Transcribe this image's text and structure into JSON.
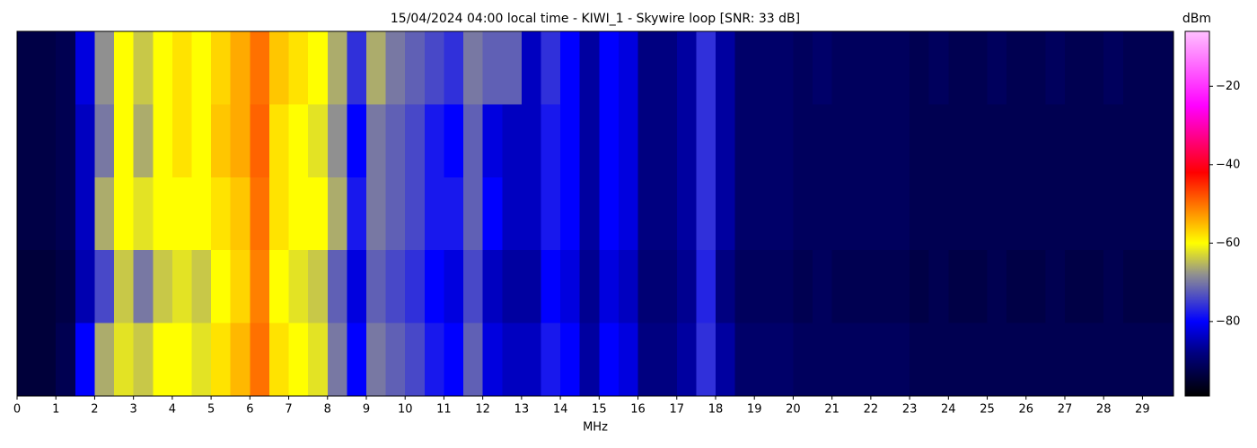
{
  "chart_data": {
    "type": "heatmap",
    "title": "15/04/2024 04:00 local time - KIWI_1 - Skywire loop [SNR: 33 dB]",
    "x_label": "MHz",
    "colorbar_label": "dBm",
    "xbins": [
      0,
      0.5,
      1,
      1.5,
      2,
      2.5,
      3,
      3.5,
      4,
      4.5,
      5,
      5.5,
      6,
      6.5,
      7,
      7.5,
      8,
      8.5,
      9,
      9.5,
      10,
      10.5,
      11,
      11.5,
      12,
      12.5,
      13,
      13.5,
      14,
      14.5,
      15,
      15.5,
      16,
      16.5,
      17,
      17.5,
      18,
      18.5,
      19,
      19.5,
      20,
      20.5,
      21,
      21.5,
      22,
      22.5,
      23,
      23.5,
      24,
      24.5,
      25,
      25.5,
      26,
      26.5,
      27,
      27.5,
      28,
      28.5,
      29,
      29.5,
      29.8
    ],
    "xlim": [
      0,
      29.8
    ],
    "xticks": [
      0,
      1,
      2,
      3,
      4,
      5,
      6,
      7,
      8,
      9,
      10,
      11,
      12,
      13,
      14,
      15,
      16,
      17,
      18,
      19,
      20,
      21,
      22,
      23,
      24,
      25,
      26,
      27,
      28,
      29
    ],
    "clim": [
      -99,
      -6
    ],
    "cticks": [
      {
        "value": -20,
        "label": "−20"
      },
      {
        "value": -40,
        "label": "−40"
      },
      {
        "value": -60,
        "label": "−60"
      },
      {
        "value": -80,
        "label": "−80"
      }
    ],
    "colorscale": [
      [
        -99,
        "#000000"
      ],
      [
        -88,
        "#000080"
      ],
      [
        -80,
        "#0000ff"
      ],
      [
        -68,
        "#909090"
      ],
      [
        -60,
        "#ffff00"
      ],
      [
        -42,
        "#ff0000"
      ],
      [
        -25,
        "#ff00ff"
      ],
      [
        -6,
        "#ffc0ff"
      ]
    ],
    "z": [
      [
        -93,
        -93,
        -92,
        -82,
        -68,
        -60,
        -64,
        -60,
        -58,
        -60,
        -57,
        -54,
        -50,
        -56,
        -58,
        -60,
        -66,
        -76,
        -66,
        -70,
        -72,
        -74,
        -76,
        -70,
        -72,
        -72,
        -84,
        -76,
        -80,
        -86,
        -80,
        -82,
        -88,
        -88,
        -86,
        -76,
        -86,
        -90,
        -90,
        -90,
        -91,
        -90,
        -91,
        -91,
        -91,
        -91,
        -92,
        -91,
        -92,
        -92,
        -91,
        -92,
        -92,
        -91,
        -92,
        -92,
        -91,
        -92,
        -92,
        -92
      ],
      [
        -93,
        -93,
        -92,
        -84,
        -70,
        -60,
        -66,
        -60,
        -58,
        -60,
        -56,
        -54,
        -49,
        -58,
        -60,
        -62,
        -68,
        -80,
        -70,
        -72,
        -74,
        -78,
        -80,
        -72,
        -82,
        -84,
        -84,
        -78,
        -80,
        -86,
        -80,
        -82,
        -88,
        -88,
        -86,
        -76,
        -86,
        -90,
        -90,
        -90,
        -91,
        -91,
        -91,
        -91,
        -91,
        -91,
        -92,
        -92,
        -92,
        -92,
        -92,
        -92,
        -92,
        -92,
        -92,
        -92,
        -92,
        -92,
        -92,
        -92
      ],
      [
        -93,
        -93,
        -92,
        -84,
        -66,
        -60,
        -62,
        -60,
        -60,
        -60,
        -58,
        -56,
        -50,
        -58,
        -60,
        -60,
        -66,
        -78,
        -70,
        -72,
        -74,
        -78,
        -78,
        -72,
        -80,
        -84,
        -84,
        -78,
        -80,
        -86,
        -80,
        -82,
        -88,
        -88,
        -86,
        -76,
        -86,
        -90,
        -90,
        -90,
        -91,
        -91,
        -91,
        -91,
        -91,
        -91,
        -92,
        -92,
        -92,
        -92,
        -92,
        -92,
        -92,
        -92,
        -92,
        -92,
        -92,
        -92,
        -92,
        -92
      ],
      [
        -94,
        -94,
        -93,
        -85,
        -74,
        -64,
        -70,
        -64,
        -62,
        -64,
        -60,
        -57,
        -51,
        -60,
        -62,
        -64,
        -72,
        -82,
        -72,
        -74,
        -76,
        -80,
        -82,
        -74,
        -84,
        -86,
        -86,
        -80,
        -82,
        -87,
        -82,
        -84,
        -89,
        -89,
        -87,
        -77,
        -88,
        -91,
        -91,
        -91,
        -92,
        -91,
        -92,
        -92,
        -92,
        -92,
        -93,
        -92,
        -93,
        -93,
        -92,
        -93,
        -93,
        -92,
        -93,
        -93,
        -92,
        -93,
        -93,
        -93
      ],
      [
        -94,
        -94,
        -92,
        -80,
        -66,
        -62,
        -64,
        -60,
        -60,
        -62,
        -58,
        -55,
        -50,
        -58,
        -60,
        -62,
        -70,
        -80,
        -70,
        -72,
        -74,
        -78,
        -80,
        -72,
        -82,
        -84,
        -84,
        -78,
        -80,
        -86,
        -80,
        -82,
        -88,
        -88,
        -86,
        -76,
        -86,
        -90,
        -90,
        -90,
        -91,
        -91,
        -91,
        -91,
        -91,
        -91,
        -92,
        -92,
        -92,
        -92,
        -92,
        -92,
        -92,
        -92,
        -92,
        -92,
        -92,
        -92,
        -92,
        -92
      ]
    ]
  }
}
